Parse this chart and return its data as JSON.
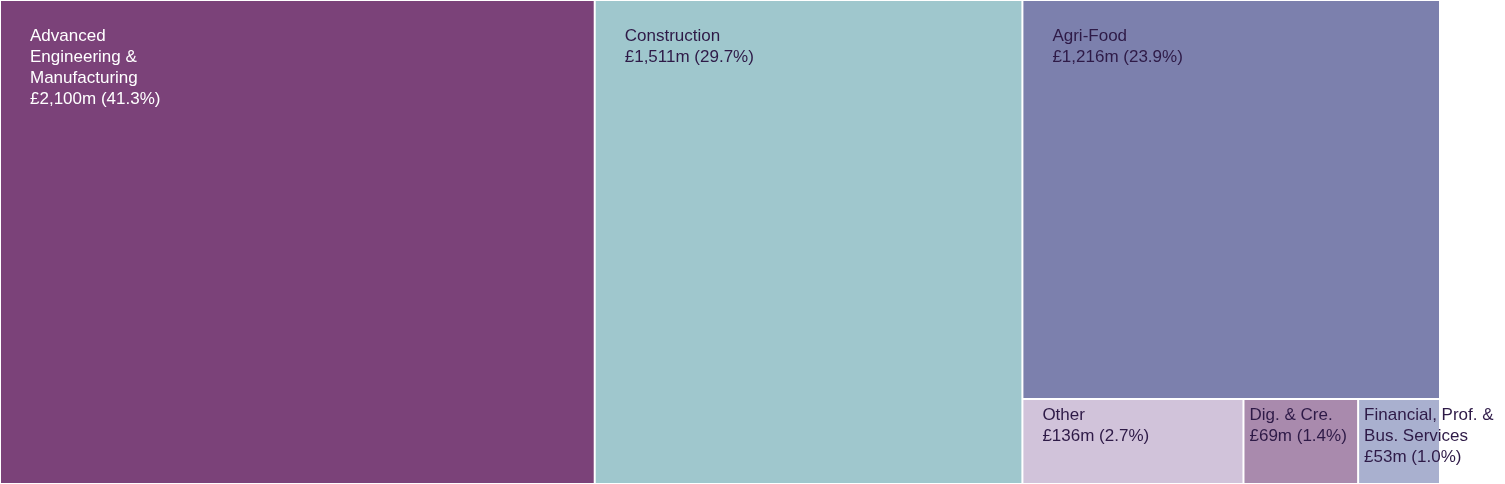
{
  "chart_data": {
    "type": "other",
    "categories": [
      "Advanced Engineering & Manufacturing",
      "Construction",
      "Agri-Food",
      "Other",
      "Dig. & Cre.",
      "Financial, Prof. & Bus. Services"
    ],
    "values": [
      41.3,
      29.7,
      23.9,
      2.7,
      1.4,
      1.0
    ],
    "value_labels": [
      "£2,100m (41.3%)",
      "£1,511m (29.7%)",
      "£1,216m (23.9%)",
      "£136m (2.7%)",
      "£69m (1.4%)",
      "£53m (1.0%)"
    ],
    "colors": [
      "#7b4279",
      "#9fc7cd",
      "#7c80ad",
      "#d1c3da",
      "#a98aad",
      "#a9b0cf"
    ]
  }
}
